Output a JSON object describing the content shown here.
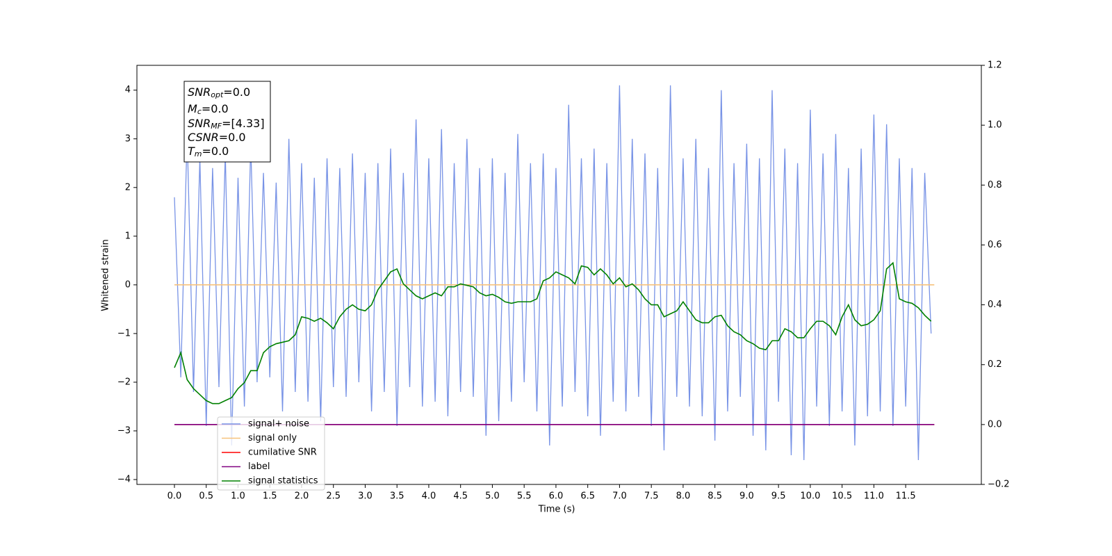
{
  "chart_data": {
    "type": "line",
    "xlabel": "Time (s)",
    "ylabel": "Whitened strain",
    "xlim": [
      -0.59,
      12.69
    ],
    "ylim": [
      -4.1,
      4.51
    ],
    "y2lim": [
      -0.2,
      1.2
    ],
    "xticks": [
      {
        "value": 0,
        "label": "0.0"
      },
      0.5,
      {
        "value": 1,
        "label": "1.0"
      },
      1.5,
      {
        "value": 2,
        "label": "2.0"
      },
      2.5,
      {
        "value": 3,
        "label": "3.0"
      },
      3.5,
      {
        "value": 4,
        "label": "4.0"
      },
      4.5,
      {
        "value": 5,
        "label": "5.0"
      },
      5.5,
      {
        "value": 6,
        "label": "6.0"
      },
      6.5,
      {
        "value": 7,
        "label": "7.0"
      },
      7.5,
      {
        "value": 8,
        "label": "8.0"
      },
      8.5,
      {
        "value": 9,
        "label": "9.0"
      },
      9.5,
      {
        "value": 10,
        "label": "10.0"
      },
      10.5,
      {
        "value": 11,
        "label": "11.0"
      },
      11.5
    ],
    "yticks": [
      {
        "value": -4,
        "label": "−4"
      },
      {
        "value": -3,
        "label": "−3"
      },
      {
        "value": -2,
        "label": "−2"
      },
      {
        "value": -1,
        "label": "−1"
      },
      0,
      1,
      2,
      3,
      4
    ],
    "y2ticks": [
      {
        "value": -0.2,
        "label": "−0.2"
      },
      {
        "value": 0,
        "label": "0.0"
      },
      0.2,
      0.4,
      0.6,
      0.8,
      {
        "value": 1,
        "label": "1.0"
      },
      1.2
    ],
    "legend": "lower left",
    "annotations": [
      {
        "symbol": "SNR",
        "subscript": "opt",
        "text": "=0.0"
      },
      {
        "symbol": "M",
        "subscript": "c",
        "text": "=0.0"
      },
      {
        "symbol": "SNR",
        "subscript": "MF",
        "text": "=[4.33]"
      },
      {
        "symbol": "CSNR",
        "text": "=0.0"
      },
      {
        "symbol": "T",
        "subscript": "m",
        "text": "=0.0"
      }
    ],
    "series": [
      {
        "name": "signal+ noise",
        "color": "#7893e6",
        "x": [
          0.0,
          0.1,
          0.2,
          0.3,
          0.4,
          0.5,
          0.6,
          0.7,
          0.8,
          0.9,
          1.0,
          1.1,
          1.2,
          1.3,
          1.4,
          1.5,
          1.6,
          1.7,
          1.8,
          1.9,
          2.0,
          2.1,
          2.2,
          2.3,
          2.4,
          2.5,
          2.6,
          2.7,
          2.8,
          2.9,
          3.0,
          3.1,
          3.2,
          3.3,
          3.4,
          3.5,
          3.6,
          3.7,
          3.8,
          3.9,
          4.0,
          4.1,
          4.2,
          4.3,
          4.4,
          4.5,
          4.6,
          4.7,
          4.8,
          4.9,
          5.0,
          5.1,
          5.2,
          5.3,
          5.4,
          5.5,
          5.6,
          5.7,
          5.8,
          5.9,
          6.0,
          6.1,
          6.2,
          6.3,
          6.4,
          6.5,
          6.6,
          6.7,
          6.8,
          6.9,
          7.0,
          7.1,
          7.2,
          7.3,
          7.4,
          7.5,
          7.6,
          7.7,
          7.8,
          7.9,
          8.0,
          8.1,
          8.2,
          8.3,
          8.4,
          8.5,
          8.6,
          8.7,
          8.8,
          8.9,
          9.0,
          9.1,
          9.2,
          9.3,
          9.4,
          9.5,
          9.6,
          9.7,
          9.8,
          9.9,
          10.0,
          10.1,
          10.2,
          10.3,
          10.4,
          10.5,
          10.6,
          10.7,
          10.8,
          10.9,
          11.0,
          11.1,
          11.2,
          11.3,
          11.4,
          11.5,
          11.6,
          11.7,
          11.8,
          11.9
        ],
        "values": [
          1.8,
          -1.9,
          3.1,
          -2.2,
          2.6,
          -2.9,
          2.4,
          -2.1,
          2.7,
          -3.3,
          2.2,
          -2.5,
          2.9,
          -2.0,
          2.3,
          -1.9,
          2.1,
          -2.6,
          3.0,
          -2.2,
          2.5,
          -2.4,
          2.2,
          -2.8,
          2.6,
          -2.1,
          2.4,
          -2.3,
          2.7,
          -2.0,
          2.3,
          -2.6,
          2.5,
          -2.2,
          2.8,
          -2.9,
          2.3,
          -2.1,
          3.4,
          -2.5,
          2.6,
          -2.4,
          3.2,
          -2.7,
          2.5,
          -2.2,
          3.0,
          -2.3,
          2.4,
          -3.1,
          2.6,
          -2.8,
          2.3,
          -2.4,
          3.1,
          -2.0,
          2.5,
          -2.6,
          2.7,
          -3.3,
          2.4,
          -2.5,
          3.7,
          -2.2,
          2.6,
          -2.7,
          2.8,
          -3.1,
          2.5,
          -2.4,
          4.1,
          -2.6,
          3.0,
          -2.3,
          2.7,
          -2.9,
          2.4,
          -3.4,
          4.1,
          -2.3,
          2.6,
          -2.5,
          3.0,
          -2.7,
          2.4,
          -3.2,
          4.0,
          -2.6,
          2.5,
          -2.3,
          2.9,
          -3.1,
          2.6,
          -3.4,
          4.0,
          -2.4,
          2.8,
          -3.5,
          2.5,
          -3.6,
          3.6,
          -2.5,
          2.7,
          -2.9,
          3.1,
          -2.6,
          2.4,
          -3.3,
          2.8,
          -2.7,
          3.5,
          -2.6,
          3.3,
          -2.9,
          2.6,
          -2.5,
          2.4,
          -3.6,
          2.3,
          -1.0
        ]
      },
      {
        "name": "signal only",
        "color": "#f7c27c",
        "x": [
          0,
          11.95
        ],
        "values": [
          0,
          0
        ]
      },
      {
        "name": "cumilative SNR",
        "color": "#ff0000",
        "axis": "y2",
        "x": [
          0,
          11.95
        ],
        "values": [
          0,
          0
        ]
      },
      {
        "name": "label",
        "color": "#800080",
        "axis": "y2",
        "x": [
          0,
          11.95
        ],
        "values": [
          0,
          0
        ]
      },
      {
        "name": "signal statistics",
        "color": "#008000",
        "axis": "y2",
        "x": [
          0.0,
          0.1,
          0.2,
          0.3,
          0.4,
          0.5,
          0.6,
          0.7,
          0.8,
          0.9,
          1.0,
          1.1,
          1.2,
          1.3,
          1.4,
          1.5,
          1.6,
          1.7,
          1.8,
          1.9,
          2.0,
          2.1,
          2.2,
          2.3,
          2.4,
          2.5,
          2.6,
          2.7,
          2.8,
          2.9,
          3.0,
          3.1,
          3.2,
          3.3,
          3.4,
          3.5,
          3.6,
          3.7,
          3.8,
          3.9,
          4.0,
          4.1,
          4.2,
          4.3,
          4.4,
          4.5,
          4.6,
          4.7,
          4.8,
          4.9,
          5.0,
          5.1,
          5.2,
          5.3,
          5.4,
          5.5,
          5.6,
          5.7,
          5.8,
          5.9,
          6.0,
          6.1,
          6.2,
          6.3,
          6.4,
          6.5,
          6.6,
          6.7,
          6.8,
          6.9,
          7.0,
          7.1,
          7.2,
          7.3,
          7.4,
          7.5,
          7.6,
          7.7,
          7.8,
          7.9,
          8.0,
          8.1,
          8.2,
          8.3,
          8.4,
          8.5,
          8.6,
          8.7,
          8.8,
          8.9,
          9.0,
          9.1,
          9.2,
          9.3,
          9.4,
          9.5,
          9.6,
          9.7,
          9.8,
          9.9,
          10.0,
          10.1,
          10.2,
          10.3,
          10.4,
          10.5,
          10.6,
          10.7,
          10.8,
          10.9,
          11.0,
          11.1,
          11.2,
          11.3,
          11.4,
          11.5,
          11.6,
          11.7,
          11.8,
          11.9
        ],
        "values": [
          0.19,
          0.24,
          0.15,
          0.12,
          0.1,
          0.08,
          0.07,
          0.07,
          0.08,
          0.09,
          0.12,
          0.14,
          0.18,
          0.18,
          0.24,
          0.26,
          0.27,
          0.275,
          0.28,
          0.3,
          0.36,
          0.355,
          0.345,
          0.355,
          0.34,
          0.32,
          0.36,
          0.385,
          0.4,
          0.385,
          0.38,
          0.4,
          0.45,
          0.48,
          0.51,
          0.52,
          0.47,
          0.45,
          0.43,
          0.42,
          0.43,
          0.44,
          0.43,
          0.46,
          0.46,
          0.47,
          0.465,
          0.46,
          0.44,
          0.43,
          0.435,
          0.425,
          0.41,
          0.405,
          0.41,
          0.41,
          0.41,
          0.42,
          0.48,
          0.49,
          0.51,
          0.5,
          0.49,
          0.47,
          0.53,
          0.525,
          0.5,
          0.52,
          0.5,
          0.47,
          0.49,
          0.46,
          0.47,
          0.45,
          0.42,
          0.4,
          0.4,
          0.36,
          0.37,
          0.38,
          0.41,
          0.38,
          0.35,
          0.34,
          0.34,
          0.36,
          0.365,
          0.33,
          0.31,
          0.3,
          0.28,
          0.27,
          0.255,
          0.25,
          0.28,
          0.28,
          0.32,
          0.31,
          0.29,
          0.29,
          0.32,
          0.345,
          0.345,
          0.33,
          0.3,
          0.36,
          0.4,
          0.35,
          0.33,
          0.335,
          0.35,
          0.38,
          0.52,
          0.54,
          0.42,
          0.41,
          0.405,
          0.39,
          0.365,
          0.345
        ]
      }
    ]
  }
}
